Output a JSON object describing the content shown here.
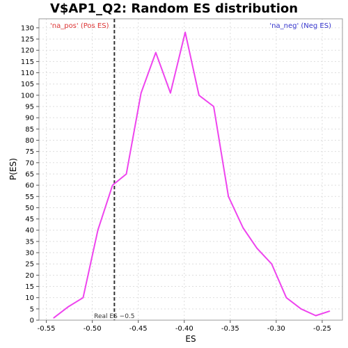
{
  "chart_data": {
    "type": "line",
    "title": "V$AP1_Q2: Random ES distribution",
    "xlabel": "ES",
    "ylabel": "P(ES)",
    "xlim": [
      -0.558,
      -0.228
    ],
    "ylim": [
      0,
      134
    ],
    "x_ticks": [
      "-0.55",
      "-0.50",
      "-0.45",
      "-0.40",
      "-0.35",
      "-0.30",
      "-0.25"
    ],
    "x_tick_values": [
      -0.55,
      -0.5,
      -0.45,
      -0.4,
      -0.35,
      -0.3,
      -0.25
    ],
    "y_ticks": [
      0,
      5,
      10,
      15,
      20,
      25,
      30,
      35,
      40,
      45,
      50,
      55,
      60,
      65,
      70,
      75,
      80,
      85,
      90,
      95,
      100,
      105,
      110,
      115,
      120,
      125,
      130
    ],
    "grid": true,
    "series": [
      {
        "color": "#ee44ee",
        "x": [
          -0.542,
          -0.526,
          -0.51,
          -0.494,
          -0.478,
          -0.463,
          -0.447,
          -0.431,
          -0.415,
          -0.399,
          -0.384,
          -0.368,
          -0.352,
          -0.336,
          -0.321,
          -0.305,
          -0.289,
          -0.273,
          -0.257,
          -0.242
        ],
        "values": [
          1,
          6,
          10,
          40,
          60,
          65,
          101,
          119,
          101,
          128,
          100,
          95,
          55,
          41,
          32,
          25,
          10,
          5,
          2,
          4
        ]
      }
    ],
    "reference_line": {
      "x": -0.476,
      "label": "Real ES −0.5",
      "color": "#333333"
    },
    "legend_pos": {
      "text": "'na_pos' (Pos ES)",
      "color": "#dd3333",
      "placement": "top-left"
    },
    "legend_neg": {
      "text": "'na_neg' (Neg ES)",
      "color": "#3333cc",
      "placement": "top-right"
    }
  }
}
